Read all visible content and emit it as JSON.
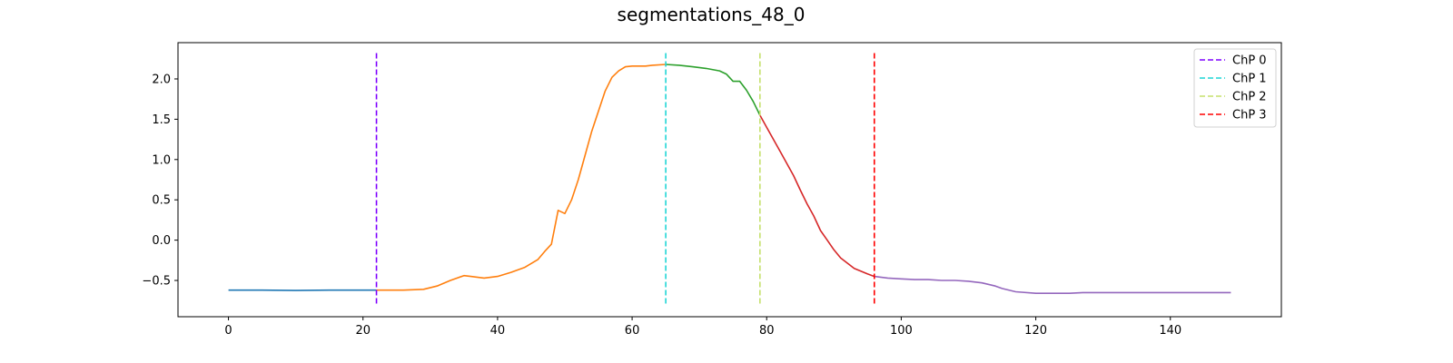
{
  "chart_data": {
    "type": "line",
    "title": "segmentations_48_0",
    "xlim": [
      -7.5,
      156.5
    ],
    "ylim": [
      -0.95,
      2.45
    ],
    "xticks": [
      0,
      20,
      40,
      60,
      80,
      100,
      120,
      140
    ],
    "yticks": [
      -0.5,
      0.0,
      0.5,
      1.0,
      1.5,
      2.0
    ],
    "ytick_labels": [
      "−0.5",
      "0.0",
      "0.5",
      "1.0",
      "1.5",
      "2.0"
    ],
    "grid": false,
    "legend_position": "top-right",
    "segments": [
      {
        "color": "#1f77b4",
        "points": [
          [
            0,
            -0.62
          ],
          [
            5,
            -0.62
          ],
          [
            10,
            -0.625
          ],
          [
            15,
            -0.62
          ],
          [
            20,
            -0.62
          ],
          [
            22,
            -0.62
          ]
        ]
      },
      {
        "color": "#ff7f0e",
        "points": [
          [
            22,
            -0.62
          ],
          [
            26,
            -0.62
          ],
          [
            29,
            -0.61
          ],
          [
            31,
            -0.57
          ],
          [
            33,
            -0.5
          ],
          [
            35,
            -0.44
          ],
          [
            36,
            -0.45
          ],
          [
            38,
            -0.47
          ],
          [
            40,
            -0.45
          ],
          [
            42,
            -0.4
          ],
          [
            44,
            -0.34
          ],
          [
            46,
            -0.24
          ],
          [
            47,
            -0.14
          ],
          [
            48,
            -0.05
          ],
          [
            49,
            0.37
          ],
          [
            50,
            0.33
          ],
          [
            51,
            0.5
          ],
          [
            52,
            0.75
          ],
          [
            53,
            1.05
          ],
          [
            54,
            1.35
          ],
          [
            55,
            1.6
          ],
          [
            56,
            1.85
          ],
          [
            57,
            2.02
          ],
          [
            58,
            2.1
          ],
          [
            59,
            2.15
          ],
          [
            60,
            2.16
          ],
          [
            62,
            2.16
          ],
          [
            63,
            2.17
          ],
          [
            65,
            2.18
          ]
        ]
      },
      {
        "color": "#2ca02c",
        "points": [
          [
            65,
            2.18
          ],
          [
            67,
            2.17
          ],
          [
            69,
            2.15
          ],
          [
            71,
            2.13
          ],
          [
            73,
            2.1
          ],
          [
            74,
            2.06
          ],
          [
            75,
            1.97
          ],
          [
            76,
            1.97
          ],
          [
            77,
            1.86
          ],
          [
            78,
            1.72
          ],
          [
            79,
            1.55
          ]
        ]
      },
      {
        "color": "#d62728",
        "points": [
          [
            79,
            1.55
          ],
          [
            80,
            1.4
          ],
          [
            82,
            1.1
          ],
          [
            84,
            0.8
          ],
          [
            85,
            0.62
          ],
          [
            86,
            0.45
          ],
          [
            87,
            0.3
          ],
          [
            88,
            0.12
          ],
          [
            89,
            0.0
          ],
          [
            90,
            -0.12
          ],
          [
            91,
            -0.22
          ],
          [
            93,
            -0.35
          ],
          [
            95,
            -0.42
          ],
          [
            96,
            -0.45
          ]
        ]
      },
      {
        "color": "#9467bd",
        "points": [
          [
            96,
            -0.45
          ],
          [
            98,
            -0.47
          ],
          [
            100,
            -0.48
          ],
          [
            102,
            -0.49
          ],
          [
            104,
            -0.49
          ],
          [
            106,
            -0.5
          ],
          [
            108,
            -0.5
          ],
          [
            110,
            -0.51
          ],
          [
            112,
            -0.53
          ],
          [
            114,
            -0.57
          ],
          [
            115,
            -0.6
          ],
          [
            117,
            -0.64
          ],
          [
            120,
            -0.66
          ],
          [
            125,
            -0.66
          ],
          [
            127,
            -0.65
          ],
          [
            130,
            -0.65
          ],
          [
            140,
            -0.65
          ],
          [
            149,
            -0.65
          ]
        ]
      }
    ],
    "changepoints": [
      {
        "name": "ChP 0",
        "x": 22,
        "color": "#7f00ff"
      },
      {
        "name": "ChP 1",
        "x": 65,
        "color": "#1fd6d6"
      },
      {
        "name": "ChP 2",
        "x": 79,
        "color": "#c5e06c"
      },
      {
        "name": "ChP 3",
        "x": 96,
        "color": "#ff0000"
      }
    ]
  }
}
